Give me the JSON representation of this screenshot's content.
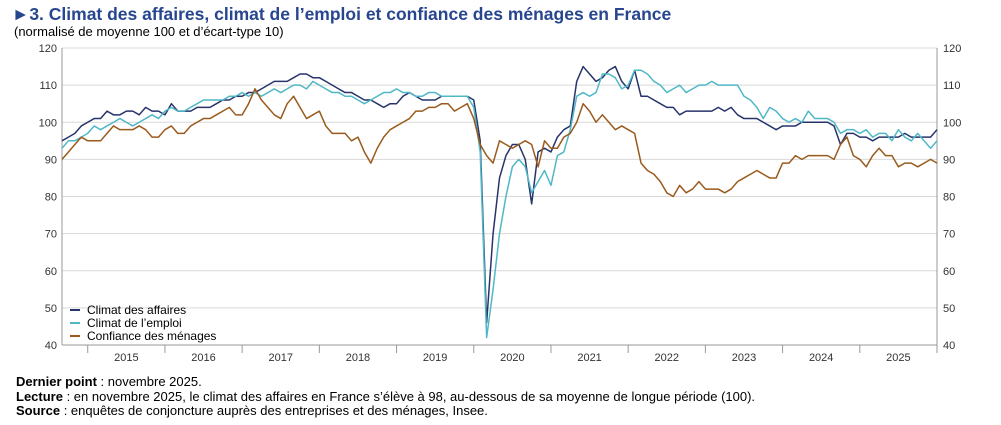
{
  "header": {
    "title": "►3. Climat des affaires, climat de l’emploi et confiance des ménages en France",
    "subtitle": "(normalisé de moyenne 100 et d’écart-type 10)"
  },
  "notes": {
    "last_point_label": "Dernier point",
    "last_point_text": " : novembre 2025.",
    "reading_label": "Lecture",
    "reading_text": " : en novembre 2025, le climat des affaires en France s’élève à 98, au-dessous de sa moyenne de longue période (100).",
    "source_label": "Source",
    "source_text": " : enquêtes de conjoncture auprès des entreprises et des ménages, Insee."
  },
  "colors": {
    "affaires": "#27346b",
    "emploi": "#4fb8c6",
    "menages": "#9a5a1c",
    "grid": "#d9d9d9",
    "axis": "#999999"
  },
  "chart_data": {
    "type": "line",
    "title": "Climat des affaires, climat de l’emploi et confiance des ménages en France",
    "ylabel": "normalisé de moyenne 100 et d’écart-type 10",
    "ylim": [
      40,
      120
    ],
    "yticks": [
      40,
      50,
      60,
      70,
      80,
      90,
      100,
      110,
      120
    ],
    "x_start": "2014-09",
    "x_end": "2025-11",
    "frequency": "monthly",
    "year_labels": [
      "2015",
      "2016",
      "2017",
      "2018",
      "2019",
      "2020",
      "2021",
      "2022",
      "2023",
      "2024",
      "2025"
    ],
    "legend_position": "bottom-left",
    "series": [
      {
        "name": "Climat des affaires",
        "color_key": "affaires",
        "values": [
          95,
          96,
          97,
          99,
          100,
          101,
          101,
          103,
          102,
          102,
          103,
          103,
          102,
          104,
          103,
          103,
          102,
          105,
          103,
          103,
          103,
          104,
          104,
          104,
          105,
          106,
          106,
          107,
          107,
          108,
          108,
          109,
          110,
          111,
          111,
          111,
          112,
          113,
          113,
          112,
          112,
          111,
          110,
          109,
          108,
          108,
          107,
          106,
          106,
          105,
          104,
          105,
          105,
          107,
          108,
          107,
          106,
          106,
          106,
          107,
          107,
          107,
          107,
          107,
          106,
          95,
          46,
          70,
          85,
          91,
          94,
          94,
          90,
          78,
          92,
          93,
          92,
          96,
          98,
          99,
          111,
          115,
          113,
          111,
          112,
          114,
          115,
          111,
          109,
          114,
          107,
          107,
          106,
          105,
          104,
          104,
          102,
          103,
          103,
          103,
          103,
          103,
          104,
          103,
          104,
          102,
          101,
          101,
          101,
          100,
          99,
          98,
          99,
          99,
          99,
          100,
          100,
          100,
          100,
          100,
          99,
          94,
          97,
          97,
          96,
          96,
          95,
          96,
          96,
          96,
          96,
          97,
          96,
          96,
          96,
          96,
          98
        ]
      },
      {
        "name": "Climat de l’emploi",
        "color_key": "emploi",
        "values": [
          93,
          95,
          95,
          96,
          97,
          99,
          98,
          99,
          100,
          101,
          100,
          99,
          100,
          101,
          102,
          101,
          103,
          104,
          103,
          103,
          104,
          105,
          106,
          106,
          106,
          106,
          107,
          107,
          108,
          107,
          108,
          107,
          108,
          109,
          108,
          109,
          110,
          110,
          109,
          111,
          110,
          109,
          108,
          108,
          107,
          107,
          106,
          105,
          106,
          107,
          108,
          108,
          109,
          108,
          108,
          107,
          107,
          108,
          108,
          107,
          107,
          107,
          107,
          107,
          104,
          92,
          42,
          55,
          70,
          80,
          88,
          90,
          88,
          81,
          84,
          87,
          83,
          91,
          92,
          98,
          107,
          108,
          107,
          108,
          113,
          113,
          112,
          109,
          110,
          114,
          114,
          113,
          111,
          110,
          108,
          109,
          110,
          108,
          109,
          110,
          110,
          111,
          110,
          110,
          110,
          110,
          107,
          106,
          104,
          101,
          104,
          103,
          101,
          100,
          101,
          100,
          103,
          101,
          101,
          101,
          100,
          97,
          98,
          98,
          97,
          98,
          96,
          97,
          97,
          95,
          98,
          96,
          95,
          97,
          95,
          93,
          95
        ]
      },
      {
        "name": "Confiance des ménages",
        "color_key": "menages",
        "values": [
          90,
          92,
          94,
          96,
          95,
          95,
          95,
          97,
          99,
          98,
          98,
          98,
          99,
          98,
          96,
          96,
          98,
          99,
          97,
          97,
          99,
          100,
          101,
          101,
          102,
          103,
          104,
          102,
          102,
          105,
          109,
          106,
          104,
          102,
          101,
          105,
          107,
          104,
          101,
          102,
          103,
          99,
          97,
          97,
          97,
          95,
          96,
          92,
          89,
          93,
          96,
          98,
          99,
          100,
          101,
          103,
          103,
          104,
          104,
          105,
          105,
          103,
          104,
          105,
          101,
          94,
          91,
          89,
          95,
          94,
          93,
          94,
          95,
          94,
          88,
          95,
          93,
          93,
          96,
          97,
          100,
          105,
          103,
          100,
          102,
          100,
          98,
          99,
          98,
          97,
          89,
          87,
          86,
          84,
          81,
          80,
          83,
          81,
          82,
          84,
          82,
          82,
          82,
          81,
          82,
          84,
          85,
          86,
          87,
          86,
          85,
          85,
          89,
          89,
          91,
          90,
          91,
          91,
          91,
          91,
          90,
          94,
          96,
          91,
          90,
          88,
          91,
          93,
          91,
          91,
          88,
          89,
          89,
          88,
          89,
          90,
          89
        ]
      }
    ]
  }
}
